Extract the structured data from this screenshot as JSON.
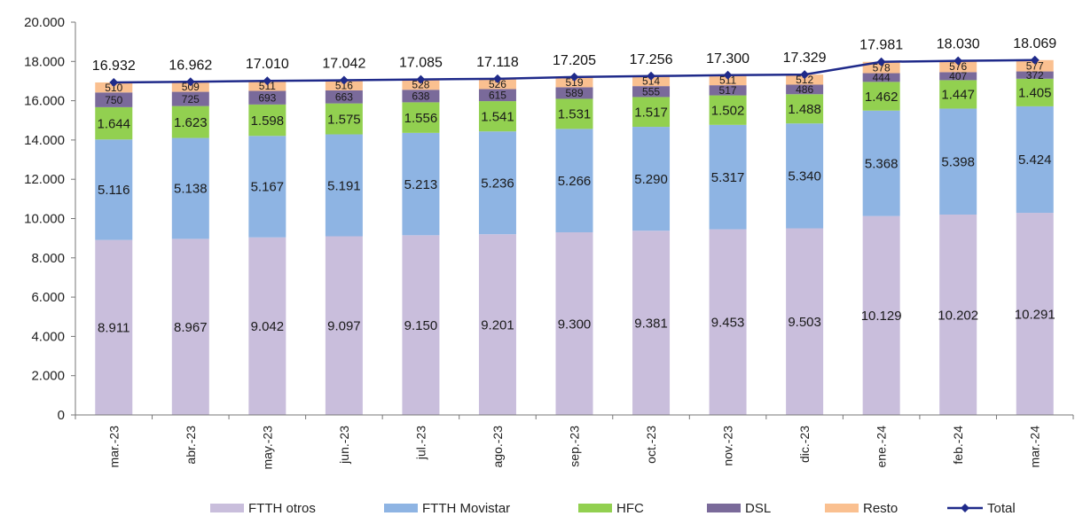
{
  "chart_data": {
    "type": "bar",
    "stacked": true,
    "categories": [
      "mar.-23",
      "abr.-23",
      "may.-23",
      "jun.-23",
      "jul.-23",
      "ago.-23",
      "sep.-23",
      "oct.-23",
      "nov.-23",
      "dic.-23",
      "ene.-24",
      "feb.-24",
      "mar.-24"
    ],
    "series": [
      {
        "name": "FTTH otros",
        "color": "#c9bedc",
        "values": [
          8911,
          8967,
          9042,
          9097,
          9150,
          9201,
          9300,
          9381,
          9453,
          9503,
          10129,
          10202,
          10291
        ],
        "labels": [
          "8.911",
          "8.967",
          "9.042",
          "9.097",
          "9.150",
          "9.201",
          "9.300",
          "9.381",
          "9.453",
          "9.503",
          "10.129",
          "10.202",
          "10.291"
        ]
      },
      {
        "name": "FTTH Movistar",
        "color": "#8eb4e3",
        "values": [
          5116,
          5138,
          5167,
          5191,
          5213,
          5236,
          5266,
          5290,
          5317,
          5340,
          5368,
          5398,
          5424
        ],
        "labels": [
          "5.116",
          "5.138",
          "5.167",
          "5.191",
          "5.213",
          "5.236",
          "5.266",
          "5.290",
          "5.317",
          "5.340",
          "5.368",
          "5.398",
          "5.424"
        ]
      },
      {
        "name": "HFC",
        "color": "#92d050",
        "values": [
          1644,
          1623,
          1598,
          1575,
          1556,
          1541,
          1531,
          1517,
          1502,
          1488,
          1462,
          1447,
          1405
        ],
        "labels": [
          "1.644",
          "1.623",
          "1.598",
          "1.575",
          "1.556",
          "1.541",
          "1.531",
          "1.517",
          "1.502",
          "1.488",
          "1.462",
          "1.447",
          "1.405"
        ]
      },
      {
        "name": "DSL",
        "color": "#7a6a9a",
        "values": [
          750,
          725,
          693,
          663,
          638,
          615,
          589,
          555,
          517,
          486,
          444,
          407,
          372
        ],
        "labels": [
          "750",
          "725",
          "693",
          "663",
          "638",
          "615",
          "589",
          "555",
          "517",
          "486",
          "444",
          "407",
          "372"
        ]
      },
      {
        "name": "Resto",
        "color": "#fac090",
        "values": [
          510,
          509,
          511,
          516,
          528,
          526,
          519,
          514,
          511,
          512,
          578,
          576,
          577
        ],
        "labels": [
          "510",
          "509",
          "511",
          "516",
          "528",
          "526",
          "519",
          "514",
          "511",
          "512",
          "578",
          "576",
          "577"
        ]
      }
    ],
    "total": {
      "name": "Total",
      "color": "#1f2a8a",
      "values": [
        16932,
        16962,
        17010,
        17042,
        17085,
        17118,
        17205,
        17256,
        17300,
        17329,
        17981,
        18030,
        18069
      ],
      "labels": [
        "16.932",
        "16.962",
        "17.010",
        "17.042",
        "17.085",
        "17.118",
        "17.205",
        "17.256",
        "17.300",
        "17.329",
        "17.981",
        "18.030",
        "18.069"
      ]
    },
    "ylim": [
      0,
      20000
    ],
    "ytick_values": [
      0,
      2000,
      4000,
      6000,
      8000,
      10000,
      12000,
      14000,
      16000,
      18000,
      20000
    ],
    "ytick_labels": [
      "0",
      "2.000",
      "4.000",
      "6.000",
      "8.000",
      "10.000",
      "12.000",
      "14.000",
      "16.000",
      "18.000",
      "20.000"
    ],
    "legend_position": "bottom",
    "grid": false
  }
}
